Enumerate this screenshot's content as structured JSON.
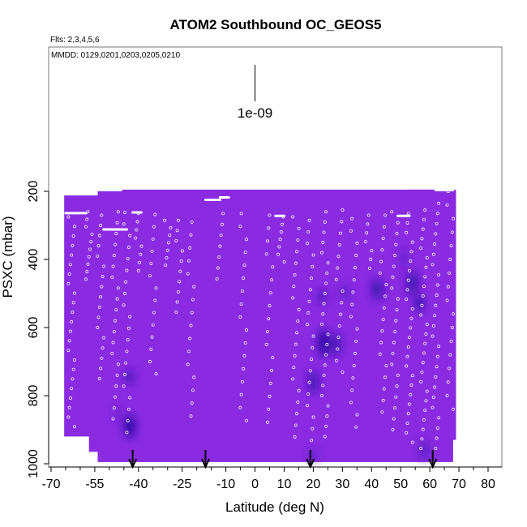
{
  "chart_data": {
    "type": "heatmap",
    "title": "ATOM2 Southbound OC_GEOS5",
    "flights_note": "Flts: 2,3,4,5,6",
    "dates_note": "MMDD: 0129,0201,0203,0205,0210",
    "xlabel": "Latitude (deg N)",
    "ylabel": "PSXC (mbar)",
    "xlim": [
      -70,
      85
    ],
    "ylim": [
      1000,
      100
    ],
    "x_ticks": [
      -70,
      -55,
      -40,
      -25,
      -10,
      0,
      10,
      20,
      30,
      40,
      50,
      60,
      70,
      80
    ],
    "x_tick_labels": [
      "-70",
      "-55",
      "-40",
      "-25",
      "-10",
      "0",
      "10",
      "20",
      "30",
      "40",
      "50",
      "60",
      "70",
      "80"
    ],
    "x_minor_ticks": [
      -65,
      -60,
      -50,
      -45,
      -35,
      -30,
      -20,
      -15,
      -5,
      5,
      15,
      25,
      35,
      45,
      55,
      65,
      75,
      85
    ],
    "y_ticks": [
      200,
      400,
      600,
      800,
      1000
    ],
    "y_tick_labels": [
      "200",
      "400",
      "600",
      "800",
      "1000"
    ],
    "scale_bar": {
      "label": "1e-09",
      "x": 0,
      "p_top": 148,
      "p_bottom": 260
    },
    "colors": {
      "low": "#8a2be2",
      "high": "#00008b",
      "points": "#ffffff"
    },
    "curtain_extent": [
      {
        "lat_min": -65.5,
        "lat_max": -54,
        "p_top": 212,
        "p_bottom": 920
      },
      {
        "lat_min": -54,
        "lat_max": 68,
        "p_top": 195,
        "p_bottom": 995
      },
      {
        "lat_min": 52,
        "lat_max": 68,
        "p_top": 195,
        "p_bottom": 850
      },
      {
        "lat_min": -57,
        "lat_max": -48,
        "p_top": 910,
        "p_bottom": 965
      },
      {
        "lat_min": 64,
        "lat_max": 69,
        "p_top": 195,
        "p_bottom": 930
      }
    ],
    "concentration_blobs": [
      {
        "lat": -43,
        "p": 890,
        "lat_width": 3,
        "p_height": 60,
        "level": 0.85
      },
      {
        "lat": -43,
        "p": 745,
        "lat_width": 3,
        "p_height": 40,
        "level": 0.5
      },
      {
        "lat": -47,
        "p": 850,
        "lat_width": 2,
        "p_height": 30,
        "level": 0.35
      },
      {
        "lat": 23.5,
        "p": 645,
        "lat_width": 3,
        "p_height": 70,
        "level": 0.85
      },
      {
        "lat": 28,
        "p": 650,
        "lat_width": 3,
        "p_height": 60,
        "level": 0.55
      },
      {
        "lat": 20,
        "p": 760,
        "lat_width": 3,
        "p_height": 60,
        "level": 0.6
      },
      {
        "lat": 23,
        "p": 510,
        "lat_width": 3,
        "p_height": 40,
        "level": 0.45
      },
      {
        "lat": 42,
        "p": 488,
        "lat_width": 3,
        "p_height": 50,
        "level": 0.75
      },
      {
        "lat": 54,
        "p": 470,
        "lat_width": 3,
        "p_height": 60,
        "level": 0.7
      },
      {
        "lat": 56.5,
        "p": 530,
        "lat_width": 2,
        "p_height": 40,
        "level": 0.95
      },
      {
        "lat": 51,
        "p": 395,
        "lat_width": 2,
        "p_height": 50,
        "level": 0.4
      },
      {
        "lat": 31,
        "p": 495,
        "lat_width": 3,
        "p_height": 40,
        "level": 0.35
      },
      {
        "lat": 58,
        "p": 960,
        "lat_width": 3,
        "p_height": 50,
        "level": 0.4
      },
      {
        "lat": 20,
        "p": 975,
        "lat_width": 3,
        "p_height": 30,
        "level": 0.35
      }
    ],
    "sample_columns": [
      {
        "lat": -63,
        "p_from": 275,
        "p_to": 900,
        "spacing": 28
      },
      {
        "lat": -57,
        "p_from": 260,
        "p_to": 470,
        "spacing": 22
      },
      {
        "lat": -53,
        "p_from": 270,
        "p_to": 770,
        "spacing": 30
      },
      {
        "lat": -48,
        "p_from": 260,
        "p_to": 880,
        "spacing": 32
      },
      {
        "lat": -44,
        "p_from": 262,
        "p_to": 930,
        "spacing": 34
      },
      {
        "lat": -40,
        "p_from": 265,
        "p_to": 440,
        "spacing": 24
      },
      {
        "lat": -35,
        "p_from": 268,
        "p_to": 760,
        "spacing": 36
      },
      {
        "lat": -30,
        "p_from": 285,
        "p_to": 420,
        "spacing": 22
      },
      {
        "lat": -26,
        "p_from": 285,
        "p_to": 580,
        "spacing": 30
      },
      {
        "lat": -22,
        "p_from": 290,
        "p_to": 860,
        "spacing": 38
      },
      {
        "lat": -12,
        "p_from": 265,
        "p_to": 470,
        "spacing": 32
      },
      {
        "lat": -4,
        "p_from": 265,
        "p_to": 880,
        "spacing": 38
      },
      {
        "lat": 5,
        "p_from": 270,
        "p_to": 900,
        "spacing": 38
      },
      {
        "lat": 9,
        "p_from": 275,
        "p_to": 420,
        "spacing": 22
      },
      {
        "lat": 14,
        "p_from": 275,
        "p_to": 940,
        "spacing": 34
      },
      {
        "lat": 19,
        "p_from": 285,
        "p_to": 960,
        "spacing": 34
      },
      {
        "lat": 24,
        "p_from": 260,
        "p_to": 940,
        "spacing": 30
      },
      {
        "lat": 29,
        "p_from": 255,
        "p_to": 760,
        "spacing": 34
      },
      {
        "lat": 34,
        "p_from": 280,
        "p_to": 900,
        "spacing": 36
      },
      {
        "lat": 39,
        "p_from": 270,
        "p_to": 440,
        "spacing": 26
      },
      {
        "lat": 44,
        "p_from": 270,
        "p_to": 880,
        "spacing": 34
      },
      {
        "lat": 48,
        "p_from": 260,
        "p_to": 920,
        "spacing": 32
      },
      {
        "lat": 53,
        "p_from": 265,
        "p_to": 960,
        "spacing": 28
      },
      {
        "lat": 58,
        "p_from": 255,
        "p_to": 980,
        "spacing": 28
      },
      {
        "lat": 62,
        "p_from": 235,
        "p_to": 960,
        "spacing": 30
      },
      {
        "lat": 67,
        "p_from": 200,
        "p_to": 860,
        "spacing": 40
      }
    ],
    "level_segments": [
      {
        "lat_min": -55,
        "lat_max": -46,
        "p": 196
      },
      {
        "lat_min": -65,
        "lat_max": -58,
        "p": 264
      },
      {
        "lat_min": -52,
        "lat_max": -44,
        "p": 312
      },
      {
        "lat_min": -17,
        "lat_max": -12,
        "p": 225
      },
      {
        "lat_min": -12,
        "lat_max": -9,
        "p": 218
      },
      {
        "lat_min": 7,
        "lat_max": 10,
        "p": 272
      },
      {
        "lat_min": 62,
        "lat_max": 68,
        "p": 196
      },
      {
        "lat_min": 49,
        "lat_max": 53,
        "p": 272
      },
      {
        "lat_min": -42,
        "lat_max": -39,
        "p": 262
      }
    ],
    "profile_markers": [
      {
        "lat": -42,
        "label": "profile"
      },
      {
        "lat": -17,
        "label": "profile"
      },
      {
        "lat": 19,
        "label": "profile"
      },
      {
        "lat": 61,
        "label": "profile"
      }
    ]
  }
}
